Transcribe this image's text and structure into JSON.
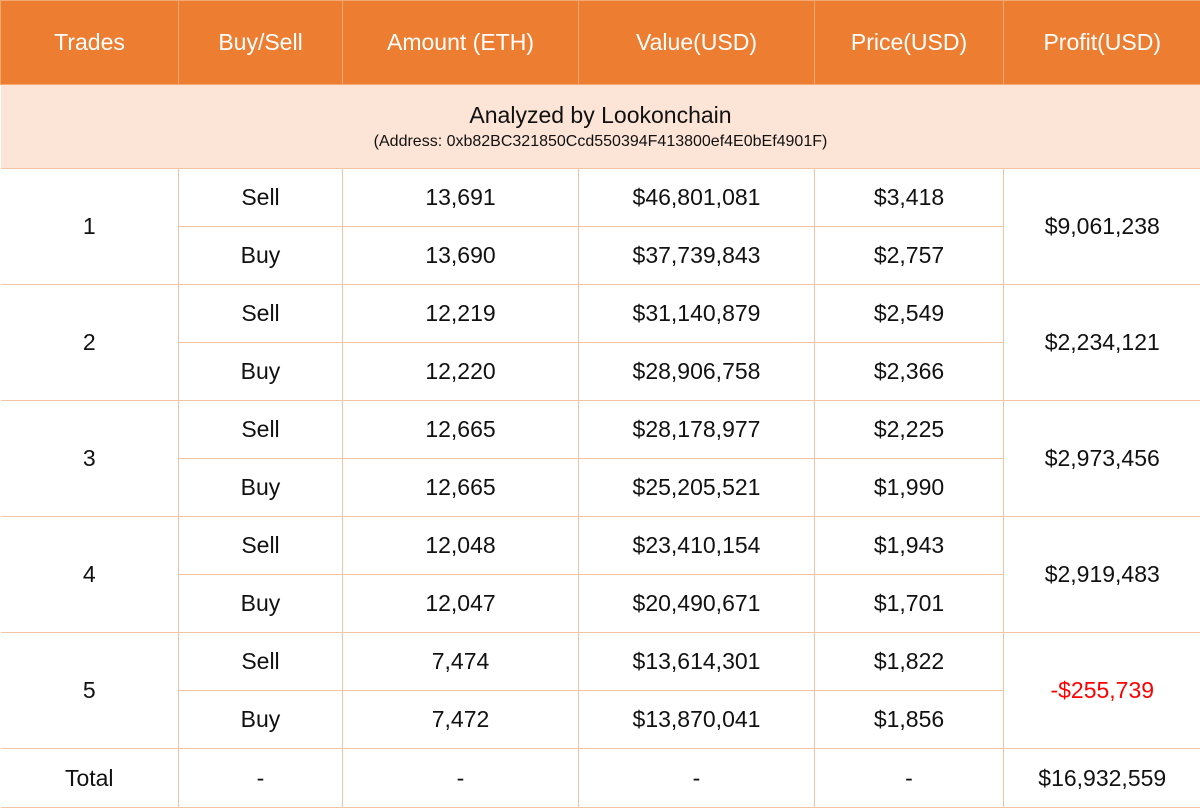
{
  "headers": [
    "Trades",
    "Buy/Sell",
    "Amount (ETH)",
    "Value(USD)",
    "Price(USD)",
    "Profit(USD)"
  ],
  "banner": {
    "title": "Analyzed by Lookonchain",
    "address": "(Address: 0xb82BC321850Ccd550394F413800ef4E0bEf4901F)"
  },
  "trades": [
    {
      "id": "1",
      "profit": "$9,061,238",
      "negative": false,
      "rows": [
        {
          "side": "Sell",
          "amount": "13,691",
          "value": "$46,801,081",
          "price": "$3,418"
        },
        {
          "side": "Buy",
          "amount": "13,690",
          "value": "$37,739,843",
          "price": "$2,757"
        }
      ]
    },
    {
      "id": "2",
      "profit": "$2,234,121",
      "negative": false,
      "rows": [
        {
          "side": "Sell",
          "amount": "12,219",
          "value": "$31,140,879",
          "price": "$2,549"
        },
        {
          "side": "Buy",
          "amount": "12,220",
          "value": "$28,906,758",
          "price": "$2,366"
        }
      ]
    },
    {
      "id": "3",
      "profit": "$2,973,456",
      "negative": false,
      "rows": [
        {
          "side": "Sell",
          "amount": "12,665",
          "value": "$28,178,977",
          "price": "$2,225"
        },
        {
          "side": "Buy",
          "amount": "12,665",
          "value": "$25,205,521",
          "price": "$1,990"
        }
      ]
    },
    {
      "id": "4",
      "profit": "$2,919,483",
      "negative": false,
      "rows": [
        {
          "side": "Sell",
          "amount": "12,048",
          "value": "$23,410,154",
          "price": "$1,943"
        },
        {
          "side": "Buy",
          "amount": "12,047",
          "value": "$20,490,671",
          "price": "$1,701"
        }
      ]
    },
    {
      "id": "5",
      "profit": "-$255,739",
      "negative": true,
      "rows": [
        {
          "side": "Sell",
          "amount": "7,474",
          "value": "$13,614,301",
          "price": "$1,822"
        },
        {
          "side": "Buy",
          "amount": "7,472",
          "value": "$13,870,041",
          "price": "$1,856"
        }
      ]
    }
  ],
  "total": {
    "label": "Total",
    "side": "-",
    "amount": "-",
    "value": "-",
    "price": "-",
    "profit": "$16,932,559"
  },
  "colors": {
    "header_bg": "#ed7d31",
    "banner_bg": "#fce4d6",
    "negative": "#ff0000",
    "grid": "#f3c3a3"
  }
}
